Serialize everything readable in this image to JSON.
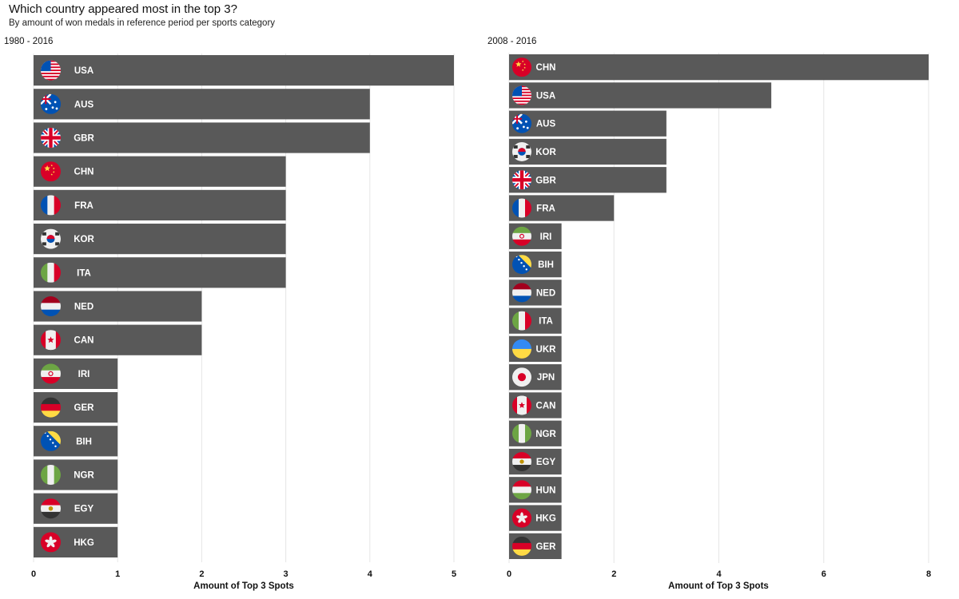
{
  "title": "Which country appeared most in the top 3?",
  "subtitle": "By amount of won medals in reference period per sports category",
  "colors": {
    "bar": "#595959",
    "grid": "#e6e6e6",
    "text": "#111111",
    "bar_label": "#ffffff"
  },
  "chart_data": [
    {
      "type": "bar",
      "orientation": "horizontal",
      "title": "1980 - 2016",
      "xlabel": "Amount of Top 3 Spots",
      "ylabel": "",
      "xlim": [
        0,
        5
      ],
      "xticks": [
        0,
        1,
        2,
        3,
        4,
        5
      ],
      "grid": true,
      "categories": [
        "USA",
        "AUS",
        "GBR",
        "CHN",
        "FRA",
        "KOR",
        "ITA",
        "NED",
        "CAN",
        "IRI",
        "GER",
        "BIH",
        "NGR",
        "EGY",
        "HKG"
      ],
      "values": [
        5,
        4,
        4,
        3,
        3,
        3,
        3,
        2,
        2,
        1,
        1,
        1,
        1,
        1,
        1
      ]
    },
    {
      "type": "bar",
      "orientation": "horizontal",
      "title": "2008 - 2016",
      "xlabel": "Amount of Top 3 Spots",
      "ylabel": "",
      "xlim": [
        0,
        8
      ],
      "xticks": [
        0,
        2,
        4,
        6,
        8
      ],
      "grid": true,
      "categories": [
        "CHN",
        "USA",
        "AUS",
        "KOR",
        "GBR",
        "FRA",
        "IRI",
        "BIH",
        "NED",
        "ITA",
        "UKR",
        "JPN",
        "CAN",
        "NGR",
        "EGY",
        "HUN",
        "HKG",
        "GER"
      ],
      "values": [
        8,
        5,
        3,
        3,
        3,
        2,
        1,
        1,
        1,
        1,
        1,
        1,
        1,
        1,
        1,
        1,
        1,
        1
      ]
    }
  ]
}
